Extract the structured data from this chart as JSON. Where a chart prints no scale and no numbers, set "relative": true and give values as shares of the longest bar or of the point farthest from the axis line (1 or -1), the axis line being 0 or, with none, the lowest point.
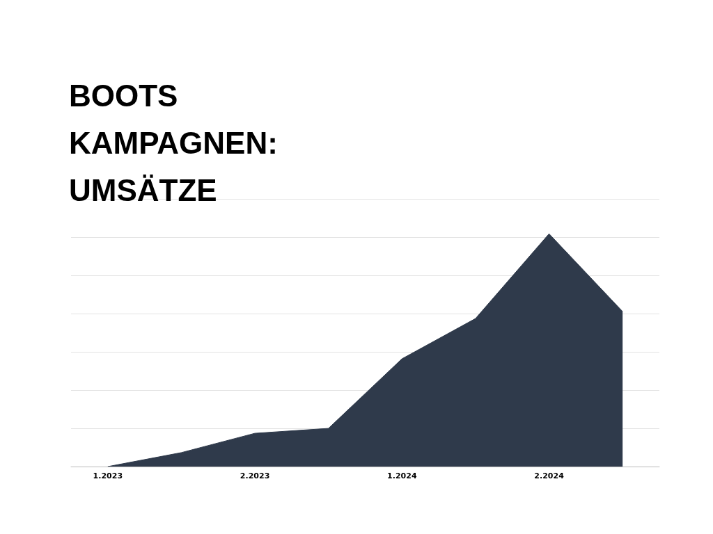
{
  "chart_data": {
    "type": "area",
    "title": "BOOTS KAMPAGNEN: UMSÄTZE",
    "categories": [
      "1.2023",
      null,
      "2.2023",
      null,
      "1.2024",
      null,
      "2.2024",
      null
    ],
    "values": [
      0,
      0.06,
      0.143,
      0.164,
      0.463,
      0.636,
      1,
      0.666
    ],
    "color": "#2f3a4b",
    "relative": true,
    "grid": "y",
    "marker": "none"
  }
}
